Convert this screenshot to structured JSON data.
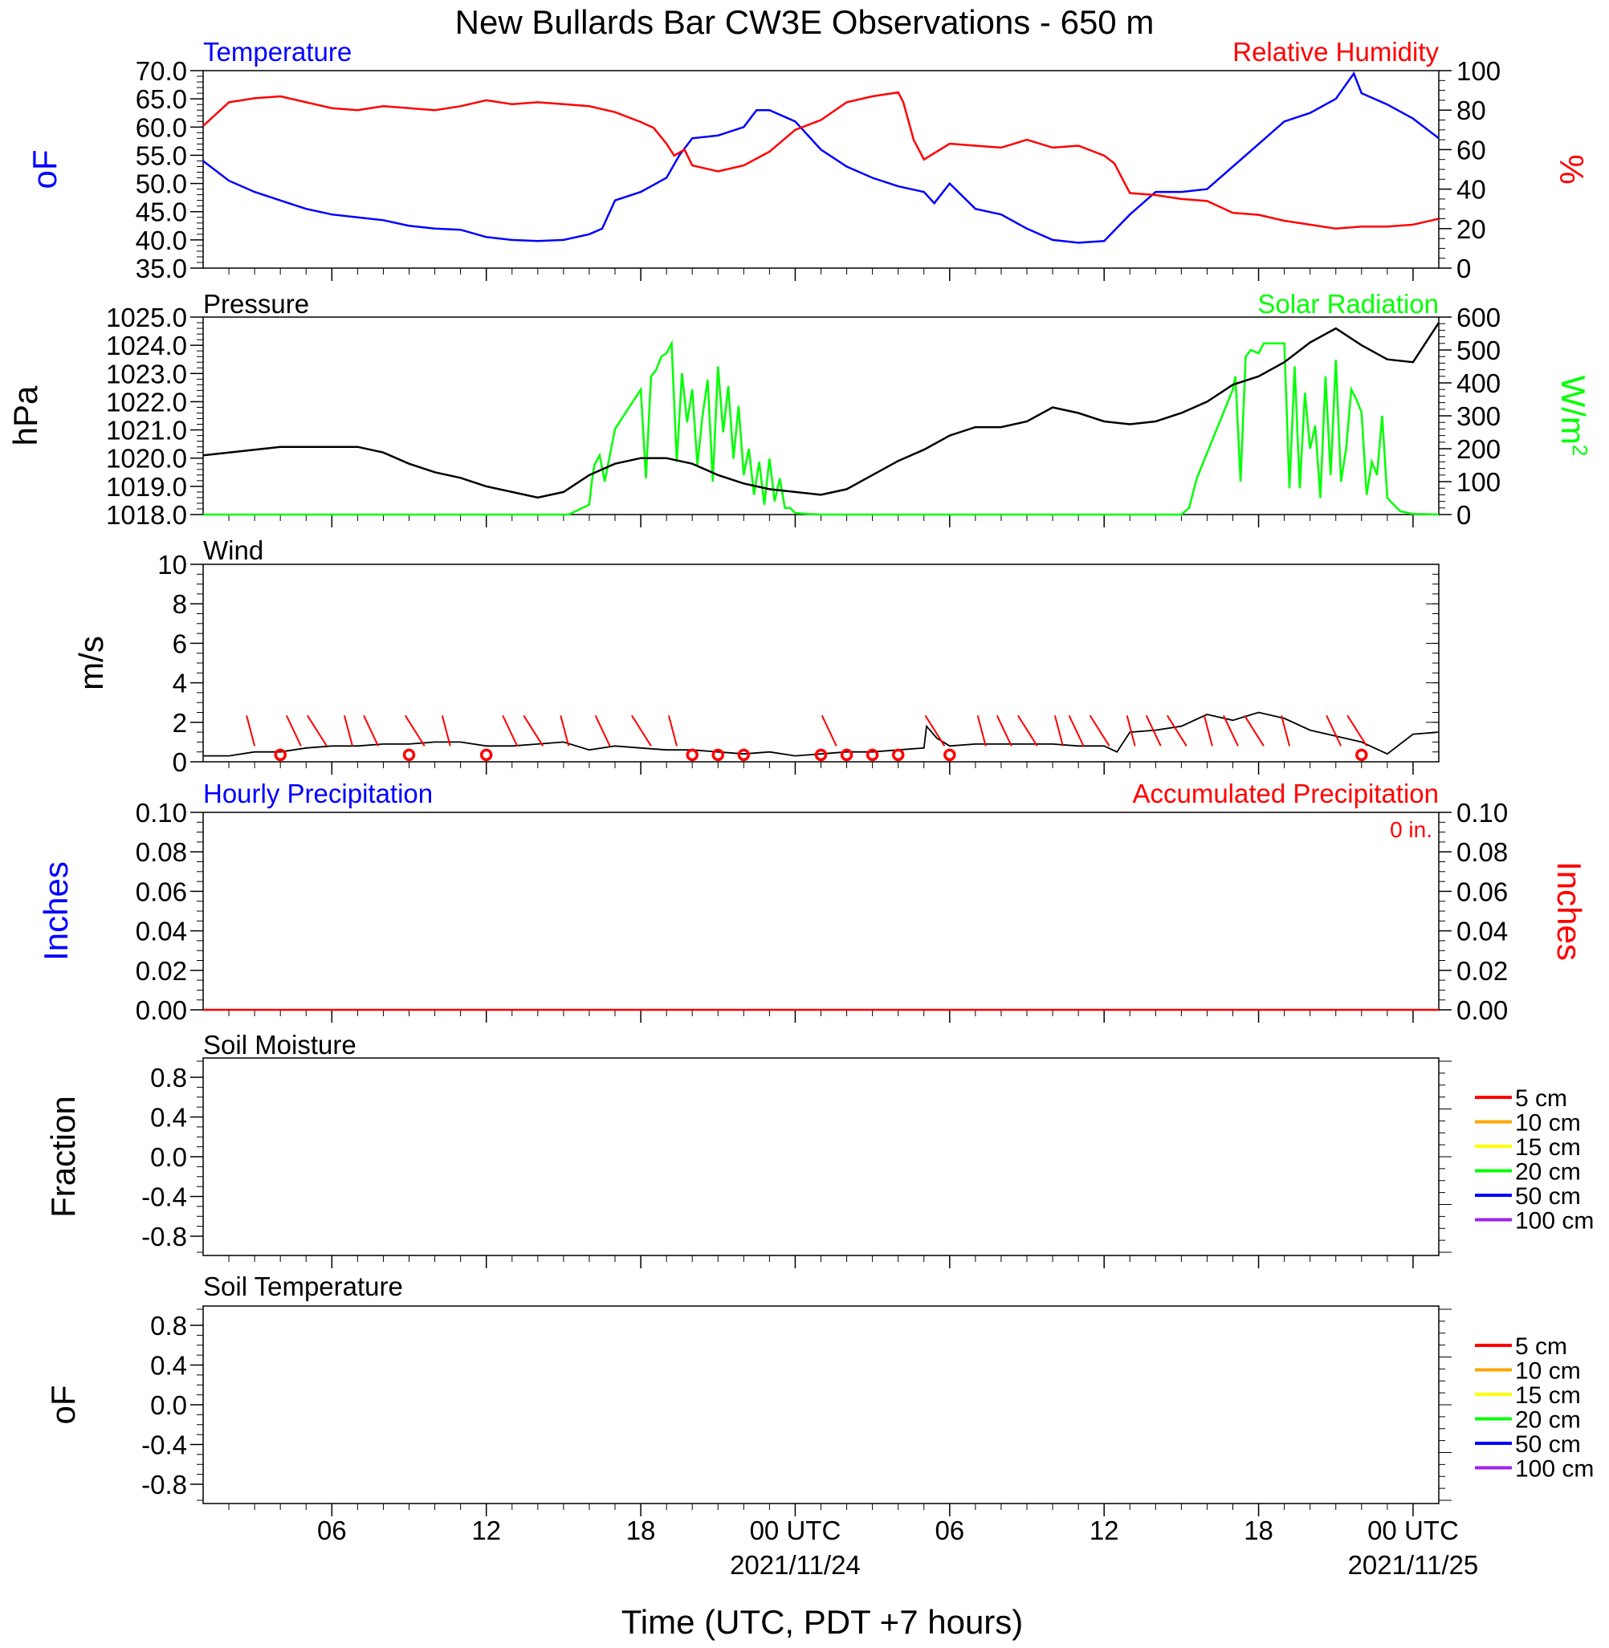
{
  "title": "New Bullards Bar CW3E Observations - 650 m",
  "x_axis": {
    "label": "Time (UTC, PDT +7 hours)",
    "range_hours": [
      0,
      48
    ],
    "ticks": [
      {
        "h": 5,
        "label": "06",
        "date": ""
      },
      {
        "h": 11,
        "label": "12",
        "date": ""
      },
      {
        "h": 17,
        "label": "18",
        "date": ""
      },
      {
        "h": 23,
        "label": "00 UTC",
        "date": "2021/11/24"
      },
      {
        "h": 29,
        "label": "06",
        "date": ""
      },
      {
        "h": 35,
        "label": "12",
        "date": ""
      },
      {
        "h": 41,
        "label": "18",
        "date": ""
      },
      {
        "h": 47,
        "label": "00 UTC",
        "date": "2021/11/25"
      }
    ]
  },
  "colors": {
    "temperature": "#0000ff",
    "humidity": "#ff0000",
    "pressure": "#000000",
    "solar": "#00ff00",
    "wind": "#000000",
    "barbs": "#ff0000",
    "precip_hourly": "#0000ff",
    "precip_accum": "#ff0000"
  },
  "panels": {
    "temp_rh": {
      "left_title": "Temperature",
      "right_title": "Relative Humidity",
      "left_unit": "oF",
      "right_unit": "%",
      "left_ticks": [
        "70.0",
        "65.0",
        "60.0",
        "55.0",
        "50.0",
        "45.0",
        "40.0",
        "35.0"
      ],
      "right_ticks": [
        "100",
        "80",
        "60",
        "40",
        "20",
        "0"
      ]
    },
    "pressure_solar": {
      "left_title": "Pressure",
      "right_title": "Solar Radiation",
      "left_unit": "hPa",
      "right_unit": "W/m2",
      "left_ticks": [
        "1025.0",
        "1024.0",
        "1023.0",
        "1022.0",
        "1021.0",
        "1020.0",
        "1019.0",
        "1018.0"
      ],
      "right_ticks": [
        "600",
        "500",
        "400",
        "300",
        "200",
        "100",
        "0"
      ]
    },
    "wind": {
      "left_title": "Wind",
      "left_unit": "m/s",
      "left_ticks": [
        "10",
        "8",
        "6",
        "4",
        "2",
        "0"
      ]
    },
    "precip": {
      "left_title": "Hourly Precipitation",
      "right_title": "Accumulated Precipitation",
      "total_label": "0 in.",
      "left_unit": "Inches",
      "right_unit": "Inches",
      "left_ticks": [
        "0.10",
        "0.08",
        "0.06",
        "0.04",
        "0.02",
        "0.00"
      ],
      "right_ticks": [
        "0.10",
        "0.08",
        "0.06",
        "0.04",
        "0.02",
        "0.00"
      ]
    },
    "soil_moisture": {
      "left_title": "Soil Moisture",
      "left_unit": "Fraction",
      "left_ticks": [
        "0.8",
        "0.4",
        "0.0",
        "-0.4",
        "-0.8"
      ],
      "legend": [
        {
          "label": "5 cm",
          "color": "#ff0000"
        },
        {
          "label": "10 cm",
          "color": "#ffa500"
        },
        {
          "label": "15 cm",
          "color": "#ffff00"
        },
        {
          "label": "20 cm",
          "color": "#00ff00"
        },
        {
          "label": "50 cm",
          "color": "#0000ff"
        },
        {
          "label": "100 cm",
          "color": "#a020f0"
        }
      ]
    },
    "soil_temp": {
      "left_title": "Soil Temperature",
      "left_unit": "oF",
      "left_ticks": [
        "0.8",
        "0.4",
        "0.0",
        "-0.4",
        "-0.8"
      ],
      "legend": [
        {
          "label": "5 cm",
          "color": "#ff0000"
        },
        {
          "label": "10 cm",
          "color": "#ffa500"
        },
        {
          "label": "15 cm",
          "color": "#ffff00"
        },
        {
          "label": "20 cm",
          "color": "#00ff00"
        },
        {
          "label": "50 cm",
          "color": "#0000ff"
        },
        {
          "label": "100 cm",
          "color": "#a020f0"
        }
      ]
    }
  },
  "chart_data": [
    {
      "type": "line",
      "panel": "temp_rh",
      "x_units": "hours since plot start (UTC)",
      "ylim_left": [
        35,
        70
      ],
      "ylim_right": [
        0,
        100
      ],
      "series": [
        {
          "name": "Temperature",
          "axis": "left",
          "x": [
            0,
            1,
            2,
            3,
            4,
            5,
            6,
            7,
            8,
            9,
            10,
            11,
            12,
            13,
            14,
            15,
            15.5,
            16,
            17,
            18,
            18.5,
            19,
            20,
            21,
            21.5,
            22,
            23,
            24,
            25,
            26,
            27,
            28,
            28.2,
            28.4,
            29,
            30,
            31,
            32,
            33,
            34,
            35,
            36,
            37,
            38,
            39,
            40,
            41,
            42,
            43,
            44,
            44.7,
            45,
            46,
            47,
            48
          ],
          "y": [
            54,
            50.5,
            48.5,
            47,
            45.5,
            44.5,
            44,
            43.5,
            42.5,
            42,
            41.8,
            40.5,
            40,
            39.8,
            40,
            41,
            42,
            47,
            48.5,
            51,
            55,
            58,
            58.5,
            60,
            63,
            63,
            61,
            56,
            53,
            51,
            49.5,
            48.5,
            47.5,
            46.5,
            50,
            45.5,
            44.5,
            42,
            40,
            39.5,
            39.8,
            44.5,
            48.5,
            48.5,
            49,
            53,
            57,
            61,
            62.5,
            65,
            69.5,
            66,
            64,
            61.5,
            58
          ]
        },
        {
          "name": "Relative Humidity",
          "axis": "right",
          "x": [
            0,
            1,
            2,
            3,
            4,
            5,
            6,
            7,
            8,
            9,
            10,
            11,
            12,
            13,
            14,
            15,
            16,
            17,
            17.5,
            18,
            18.3,
            18.7,
            19,
            20,
            21,
            22,
            23,
            24,
            25,
            26,
            27,
            27.2,
            27.6,
            28,
            29,
            30,
            31,
            32,
            33,
            34,
            35,
            35.4,
            35.8,
            36,
            37,
            38,
            39,
            40,
            41,
            42,
            43,
            44,
            45,
            46,
            47,
            48
          ],
          "y": [
            72,
            84,
            86,
            87,
            84,
            81,
            80,
            82,
            81,
            80,
            82,
            85,
            83,
            84,
            83,
            82,
            79,
            74,
            71,
            63,
            57,
            60,
            52,
            49,
            52,
            59,
            70,
            75,
            84,
            87,
            89,
            84,
            65,
            55,
            63,
            62,
            61,
            65,
            61,
            62,
            57,
            53,
            43,
            38,
            37,
            35,
            34,
            28,
            27,
            24,
            22,
            20,
            21,
            21,
            22,
            25
          ]
        }
      ]
    },
    {
      "type": "line",
      "panel": "pressure_solar",
      "x_units": "hours since plot start (UTC)",
      "ylim_left": [
        1018,
        1025
      ],
      "ylim_right": [
        0,
        600
      ],
      "series": [
        {
          "name": "Pressure",
          "axis": "left",
          "x": [
            0,
            1,
            2,
            3,
            4,
            5,
            6,
            7,
            8,
            9,
            10,
            11,
            12,
            13,
            14,
            15,
            16,
            17,
            18,
            19,
            20,
            21,
            22,
            23,
            24,
            25,
            26,
            27,
            28,
            29,
            30,
            31,
            32,
            33,
            34,
            35,
            36,
            37,
            38,
            39,
            40,
            41,
            42,
            43,
            44,
            45,
            46,
            47,
            48
          ],
          "y": [
            1020.1,
            1020.2,
            1020.3,
            1020.4,
            1020.4,
            1020.4,
            1020.4,
            1020.2,
            1019.8,
            1019.5,
            1019.3,
            1019.0,
            1018.8,
            1018.6,
            1018.8,
            1019.4,
            1019.8,
            1020.0,
            1020.0,
            1019.8,
            1019.4,
            1019.1,
            1018.9,
            1018.8,
            1018.7,
            1018.9,
            1019.4,
            1019.9,
            1020.3,
            1020.8,
            1021.1,
            1021.1,
            1021.3,
            1021.8,
            1021.6,
            1021.3,
            1021.2,
            1021.3,
            1021.6,
            1022.0,
            1022.6,
            1022.9,
            1023.4,
            1024.1,
            1024.6,
            1024.0,
            1023.5,
            1023.4,
            1024.8
          ]
        },
        {
          "name": "Solar Radiation",
          "axis": "right",
          "x": [
            0,
            13.5,
            14.2,
            15,
            15.1,
            15.2,
            15.4,
            15.6,
            16,
            17,
            17.2,
            17.4,
            17.6,
            17.8,
            18,
            18.2,
            18.4,
            18.6,
            18.8,
            19,
            19.2,
            19.4,
            19.6,
            19.8,
            20,
            20.2,
            20.4,
            20.6,
            20.8,
            21,
            21.2,
            21.4,
            21.6,
            21.8,
            22,
            22.2,
            22.4,
            22.6,
            22.8,
            23,
            23.5,
            24,
            25,
            38,
            38.3,
            38.6,
            40,
            40.1,
            40.3,
            40.5,
            40.7,
            41,
            41.2,
            42,
            42.2,
            42.4,
            42.6,
            42.8,
            43,
            43.2,
            43.4,
            43.6,
            43.8,
            44,
            44.2,
            44.4,
            44.6,
            44.8,
            45,
            45.2,
            45.4,
            45.6,
            45.8,
            46,
            46.5,
            47,
            48
          ],
          "y": [
            0,
            0,
            0,
            30,
            100,
            150,
            180,
            100,
            260,
            380,
            110,
            420,
            440,
            480,
            490,
            520,
            160,
            430,
            280,
            380,
            150,
            300,
            410,
            100,
            450,
            250,
            390,
            170,
            330,
            120,
            200,
            60,
            160,
            30,
            170,
            40,
            110,
            20,
            20,
            5,
            2,
            0,
            0,
            0,
            20,
            110,
            380,
            420,
            100,
            480,
            500,
            490,
            520,
            520,
            80,
            450,
            80,
            370,
            200,
            270,
            50,
            420,
            120,
            470,
            100,
            200,
            380,
            350,
            310,
            60,
            160,
            120,
            300,
            50,
            10,
            2,
            0
          ]
        }
      ]
    },
    {
      "type": "line",
      "panel": "wind",
      "x_units": "hours since plot start (UTC)",
      "ylim": [
        0,
        10
      ],
      "series": [
        {
          "name": "Wind Speed",
          "x": [
            0,
            1,
            2,
            3,
            4,
            5,
            6,
            7,
            8,
            9,
            10,
            11,
            12,
            13,
            14,
            15,
            16,
            17,
            18,
            19,
            20,
            21,
            22,
            23,
            24,
            25,
            26,
            27,
            28,
            28.1,
            28.5,
            29,
            30,
            31,
            32,
            33,
            34,
            35,
            35.5,
            36,
            37,
            38,
            39,
            40,
            41,
            42,
            43,
            44,
            45,
            46,
            47,
            48
          ],
          "y": [
            0.3,
            0.3,
            0.5,
            0.5,
            0.7,
            0.8,
            0.8,
            0.9,
            0.9,
            1.0,
            1.0,
            0.8,
            0.8,
            0.9,
            1.0,
            0.6,
            0.8,
            0.7,
            0.6,
            0.6,
            0.5,
            0.4,
            0.5,
            0.3,
            0.4,
            0.5,
            0.5,
            0.6,
            0.7,
            1.8,
            1.2,
            0.8,
            0.9,
            0.9,
            0.9,
            0.9,
            0.8,
            0.8,
            0.5,
            1.5,
            1.6,
            1.8,
            2.4,
            2.1,
            2.5,
            2.2,
            1.6,
            1.3,
            1.0,
            0.4,
            1.4,
            1.5
          ]
        }
      ],
      "barbs_hours": [
        2,
        3.8,
        4.8,
        5.8,
        6.8,
        8.6,
        9.6,
        12.2,
        13.2,
        14.2,
        15.8,
        17.4,
        18.4,
        24.6,
        28.8,
        30.4,
        31.4,
        32.4,
        33.4,
        34.2,
        35.2,
        36.2,
        37.2,
        38.2,
        39.2,
        40.2,
        41.2,
        42.2,
        44.2,
        45.2
      ],
      "calm_hours": [
        3,
        8,
        11,
        19,
        20,
        21,
        24,
        25,
        26,
        27,
        29,
        45
      ]
    },
    {
      "type": "line",
      "panel": "precip",
      "x_units": "hours since plot start (UTC)",
      "ylim": [
        0,
        0.1
      ],
      "series": [
        {
          "name": "Hourly Precipitation",
          "x": [
            0,
            48
          ],
          "y": [
            0,
            0
          ]
        },
        {
          "name": "Accumulated Precipitation",
          "x": [
            0,
            48
          ],
          "y": [
            0,
            0
          ]
        }
      ]
    }
  ]
}
